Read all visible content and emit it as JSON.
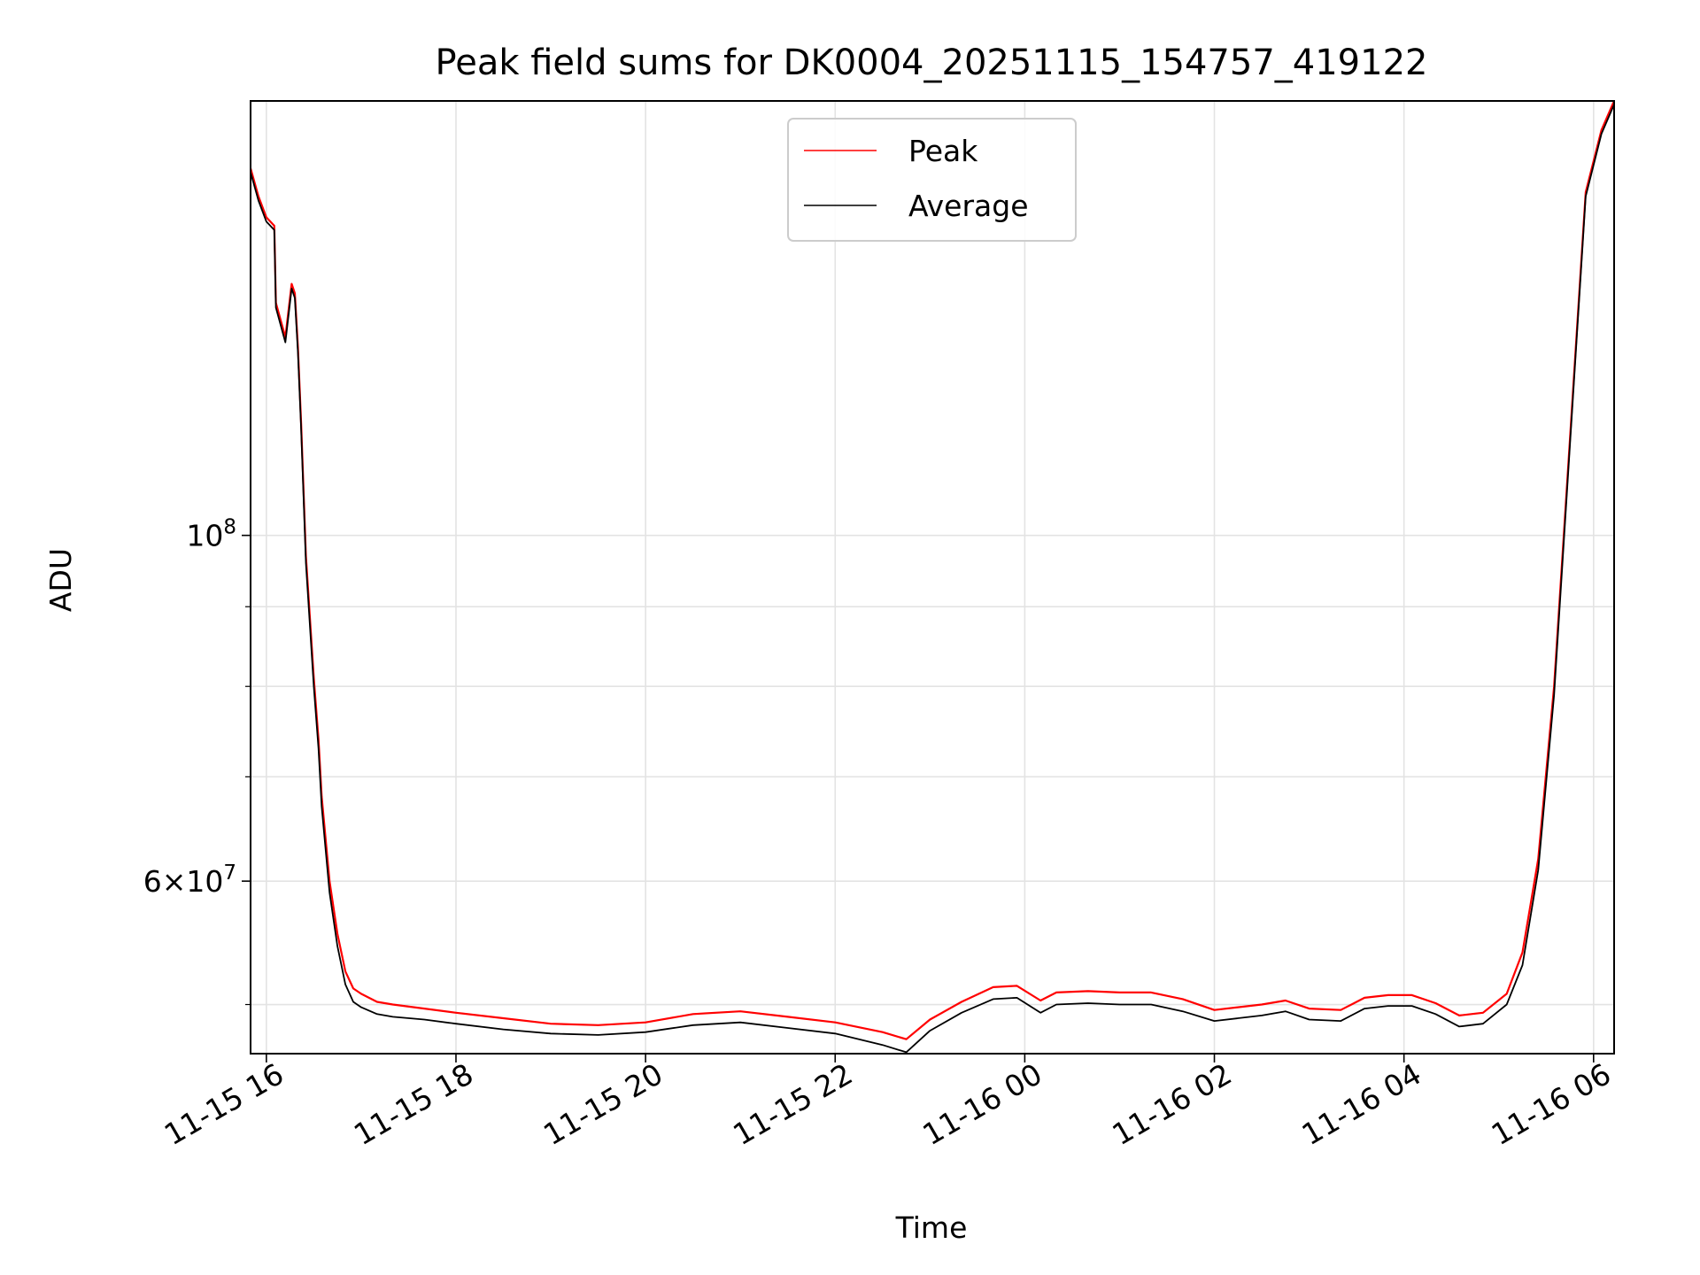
{
  "chart_data": {
    "type": "line",
    "title": "Peak field sums for DK0004_20251115_154757_419122",
    "xlabel": "Time",
    "ylabel": "ADU",
    "y_scale": "log",
    "grid": true,
    "legend_position": "top-center",
    "xlim": [
      "2025-11-15T15:50",
      "2025-11-16T06:13"
    ],
    "ylim": [
      46500000,
      190000000
    ],
    "x_ticks": [
      {
        "t": "2025-11-15T16:00",
        "label": "11-15 16"
      },
      {
        "t": "2025-11-15T18:00",
        "label": "11-15 18"
      },
      {
        "t": "2025-11-15T20:00",
        "label": "11-15 20"
      },
      {
        "t": "2025-11-15T22:00",
        "label": "11-15 22"
      },
      {
        "t": "2025-11-16T00:00",
        "label": "11-16 00"
      },
      {
        "t": "2025-11-16T02:00",
        "label": "11-16 02"
      },
      {
        "t": "2025-11-16T04:00",
        "label": "11-16 04"
      },
      {
        "t": "2025-11-16T06:00",
        "label": "11-16 06"
      }
    ],
    "y_major_ticks": [
      {
        "value": 100000000,
        "base": "10",
        "exp": "8"
      },
      {
        "value": 60000000,
        "base": "6×10",
        "exp": "7"
      }
    ],
    "y_minor_ticks": [
      50000000,
      70000000,
      80000000,
      90000000
    ],
    "series": [
      {
        "name": "Peak",
        "color": "#ff0000",
        "x": [
          "2025-11-15T15:50",
          "2025-11-15T15:55",
          "2025-11-15T16:00",
          "2025-11-15T16:05",
          "2025-11-15T16:06",
          "2025-11-15T16:12",
          "2025-11-15T16:16",
          "2025-11-15T16:18",
          "2025-11-15T16:20",
          "2025-11-15T16:22",
          "2025-11-15T16:25",
          "2025-11-15T16:30",
          "2025-11-15T16:33",
          "2025-11-15T16:35",
          "2025-11-15T16:40",
          "2025-11-15T16:45",
          "2025-11-15T16:50",
          "2025-11-15T16:55",
          "2025-11-15T17:00",
          "2025-11-15T17:10",
          "2025-11-15T17:20",
          "2025-11-15T17:40",
          "2025-11-15T18:00",
          "2025-11-15T18:30",
          "2025-11-15T19:00",
          "2025-11-15T19:30",
          "2025-11-15T20:00",
          "2025-11-15T20:30",
          "2025-11-15T21:00",
          "2025-11-15T21:30",
          "2025-11-15T22:00",
          "2025-11-15T22:30",
          "2025-11-15T22:45",
          "2025-11-15T23:00",
          "2025-11-15T23:20",
          "2025-11-15T23:40",
          "2025-11-15T23:55",
          "2025-11-16T00:10",
          "2025-11-16T00:20",
          "2025-11-16T00:40",
          "2025-11-16T01:00",
          "2025-11-16T01:20",
          "2025-11-16T01:40",
          "2025-11-16T02:00",
          "2025-11-16T02:30",
          "2025-11-16T02:45",
          "2025-11-16T03:00",
          "2025-11-16T03:20",
          "2025-11-16T03:35",
          "2025-11-16T03:50",
          "2025-11-16T04:05",
          "2025-11-16T04:20",
          "2025-11-16T04:35",
          "2025-11-16T04:50",
          "2025-11-16T05:05",
          "2025-11-16T05:15",
          "2025-11-16T05:25",
          "2025-11-16T05:35",
          "2025-11-16T05:45",
          "2025-11-16T05:55",
          "2025-11-16T06:05",
          "2025-11-16T06:13"
        ],
        "y": [
          172000000,
          165000000,
          160000000,
          158000000,
          141000000,
          134000000,
          145000000,
          143000000,
          132000000,
          118000000,
          97000000,
          81000000,
          74000000,
          68000000,
          60000000,
          55500000,
          52500000,
          51200000,
          50800000,
          50200000,
          50000000,
          49700000,
          49400000,
          49000000,
          48600000,
          48500000,
          48700000,
          49300000,
          49500000,
          49100000,
          48700000,
          48000000,
          47500000,
          48900000,
          50200000,
          51300000,
          51400000,
          50300000,
          50900000,
          51000000,
          50900000,
          50900000,
          50400000,
          49600000,
          50000000,
          50300000,
          49700000,
          49600000,
          50500000,
          50700000,
          50700000,
          50100000,
          49200000,
          49400000,
          50800000,
          54000000,
          62000000,
          80000000,
          115000000,
          166000000,
          182000000,
          190000000
        ]
      },
      {
        "name": "Average",
        "color": "#000000",
        "x": [
          "2025-11-15T15:50",
          "2025-11-15T15:55",
          "2025-11-15T16:00",
          "2025-11-15T16:05",
          "2025-11-15T16:06",
          "2025-11-15T16:12",
          "2025-11-15T16:16",
          "2025-11-15T16:18",
          "2025-11-15T16:20",
          "2025-11-15T16:22",
          "2025-11-15T16:25",
          "2025-11-15T16:30",
          "2025-11-15T16:33",
          "2025-11-15T16:35",
          "2025-11-15T16:40",
          "2025-11-15T16:45",
          "2025-11-15T16:50",
          "2025-11-15T16:55",
          "2025-11-15T17:00",
          "2025-11-15T17:10",
          "2025-11-15T17:20",
          "2025-11-15T17:40",
          "2025-11-15T18:00",
          "2025-11-15T18:30",
          "2025-11-15T19:00",
          "2025-11-15T19:30",
          "2025-11-15T20:00",
          "2025-11-15T20:30",
          "2025-11-15T21:00",
          "2025-11-15T21:30",
          "2025-11-15T22:00",
          "2025-11-15T22:30",
          "2025-11-15T22:45",
          "2025-11-15T23:00",
          "2025-11-15T23:20",
          "2025-11-15T23:40",
          "2025-11-15T23:55",
          "2025-11-16T00:10",
          "2025-11-16T00:20",
          "2025-11-16T00:40",
          "2025-11-16T01:00",
          "2025-11-16T01:20",
          "2025-11-16T01:40",
          "2025-11-16T02:00",
          "2025-11-16T02:30",
          "2025-11-16T02:45",
          "2025-11-16T03:00",
          "2025-11-16T03:20",
          "2025-11-16T03:35",
          "2025-11-16T03:50",
          "2025-11-16T04:05",
          "2025-11-16T04:20",
          "2025-11-16T04:35",
          "2025-11-16T04:50",
          "2025-11-16T05:05",
          "2025-11-16T05:15",
          "2025-11-16T05:25",
          "2025-11-16T05:35",
          "2025-11-16T05:45",
          "2025-11-16T05:55",
          "2025-11-16T06:05",
          "2025-11-16T06:13"
        ],
        "y": [
          171000000,
          164000000,
          159000000,
          157000000,
          140000000,
          133000000,
          144000000,
          142000000,
          131000000,
          117000000,
          96000000,
          80000000,
          73000000,
          67000000,
          59000000,
          54500000,
          51500000,
          50200000,
          49800000,
          49300000,
          49100000,
          48900000,
          48600000,
          48200000,
          47900000,
          47800000,
          48000000,
          48500000,
          48700000,
          48300000,
          47900000,
          47100000,
          46600000,
          48100000,
          49400000,
          50400000,
          50500000,
          49400000,
          50000000,
          50100000,
          50000000,
          50000000,
          49500000,
          48800000,
          49200000,
          49500000,
          48900000,
          48800000,
          49700000,
          49900000,
          49900000,
          49300000,
          48400000,
          48600000,
          50000000,
          53000000,
          61000000,
          79000000,
          114000000,
          165000000,
          181000000,
          189000000
        ]
      }
    ]
  }
}
